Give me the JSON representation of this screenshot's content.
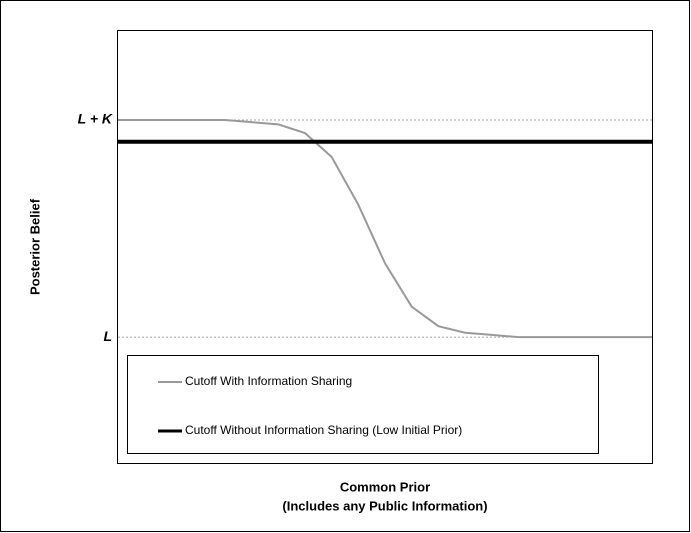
{
  "chart_data": {
    "type": "line",
    "ylabel": "Posterior Belief",
    "xlabel": [
      "Common Prior",
      "(Includes any Public Information)"
    ],
    "x": [
      0,
      0.05,
      0.1,
      0.15,
      0.2,
      0.25,
      0.3,
      0.35,
      0.4,
      0.45,
      0.5,
      0.55,
      0.6,
      0.65,
      0.7,
      0.75,
      0.8,
      0.85,
      0.9,
      0.95,
      1
    ],
    "xlim": [
      0,
      1
    ],
    "ylim": [
      -0.58,
      1.41
    ],
    "yticks": [
      {
        "value": 0,
        "label": "L"
      },
      {
        "value": 1,
        "label": "L + K"
      }
    ],
    "grid": true,
    "legend": "bottom-left",
    "series": [
      {
        "name": "Cutoff With Information Sharing",
        "color": "#999999",
        "width": 2,
        "values": [
          1,
          1,
          1,
          1,
          1,
          0.99,
          0.98,
          0.94,
          0.83,
          0.61,
          0.34,
          0.14,
          0.05,
          0.02,
          0.01,
          0,
          0,
          0,
          0,
          0,
          0
        ]
      },
      {
        "name": "Cutoff Without Information Sharing (Low Initial Prior)",
        "color": "#000000",
        "width": 4,
        "values": [
          0.9,
          0.9,
          0.9,
          0.9,
          0.9,
          0.9,
          0.9,
          0.9,
          0.9,
          0.9,
          0.9,
          0.9,
          0.9,
          0.9,
          0.9,
          0.9,
          0.9,
          0.9,
          0.9,
          0.9,
          0.9
        ]
      }
    ]
  }
}
